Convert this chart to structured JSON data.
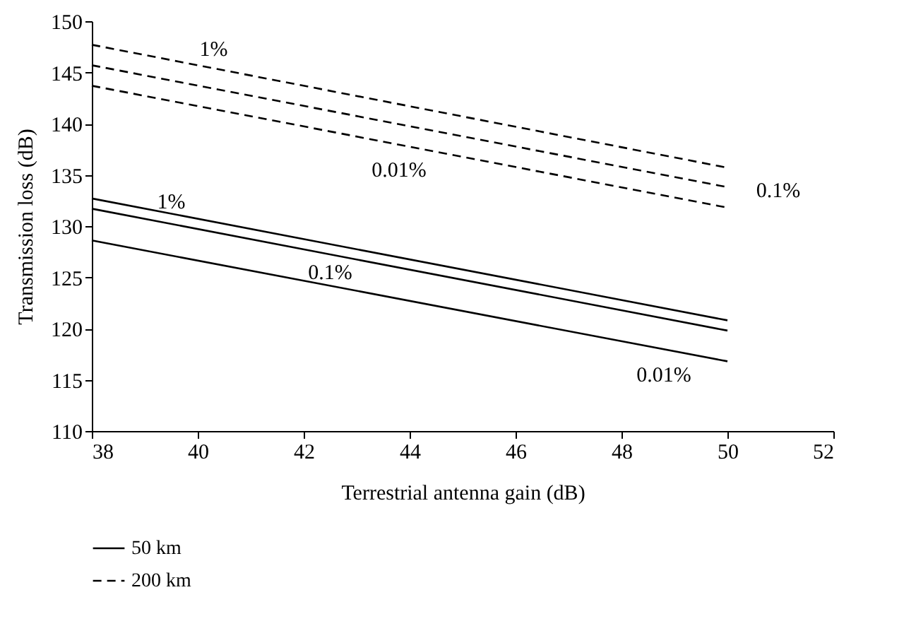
{
  "chart_data": {
    "type": "line",
    "xlabel": "Terrestrial antenna gain (dB)",
    "ylabel": "Transmission loss (dB)",
    "x": [
      38,
      50
    ],
    "series": [
      {
        "name": "50 km",
        "color": "#000000",
        "line_style": "solid",
        "values": [
          132.7,
          120.8
        ]
      },
      {
        "color": "#000000",
        "line_style": "solid",
        "values": [
          131.7,
          119.8
        ]
      },
      {
        "color": "#000000",
        "line_style": "solid",
        "values": [
          128.6,
          116.8
        ]
      },
      {
        "name": "200 km",
        "color": "#000000",
        "line_style": "dashed",
        "values": [
          147.7,
          135.7
        ]
      },
      {
        "color": "#000000",
        "line_style": "dashed",
        "values": [
          145.7,
          133.8
        ]
      },
      {
        "color": "#000000",
        "line_style": "dashed",
        "values": [
          143.7,
          131.8
        ]
      }
    ],
    "annotations": [
      {
        "text": "1%",
        "x": 40.3,
        "y": 145.4
      },
      {
        "text": "0.01%",
        "x": 43.8,
        "y": 138.0
      },
      {
        "text": "0.1%",
        "x": 50,
        "y": 133.8
      },
      {
        "text": "1%",
        "x": 39.5,
        "y": 131.2
      },
      {
        "text": "0.1%",
        "x": 42.5,
        "y": 127.2
      },
      {
        "text": "0.01%",
        "x": 48.8,
        "y": 118.0
      }
    ],
    "xlim": [
      38,
      52
    ],
    "xticks": [
      38,
      40,
      42,
      44,
      46,
      48,
      50,
      52
    ],
    "ylim": [
      110,
      150
    ],
    "yticks": [
      110,
      115,
      120,
      125,
      130,
      135,
      140,
      145,
      150
    ],
    "grid": false,
    "legend": "bottom left",
    "marker": "none"
  }
}
